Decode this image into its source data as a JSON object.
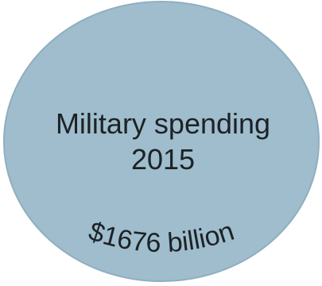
{
  "bubble": {
    "title_line1": "Military spending",
    "title_line2": "2015",
    "value_label": "$1676 billion",
    "fill_color": "#9fbdcc",
    "edge_color": "#8fafc0",
    "text_color": "#1c2226"
  }
}
